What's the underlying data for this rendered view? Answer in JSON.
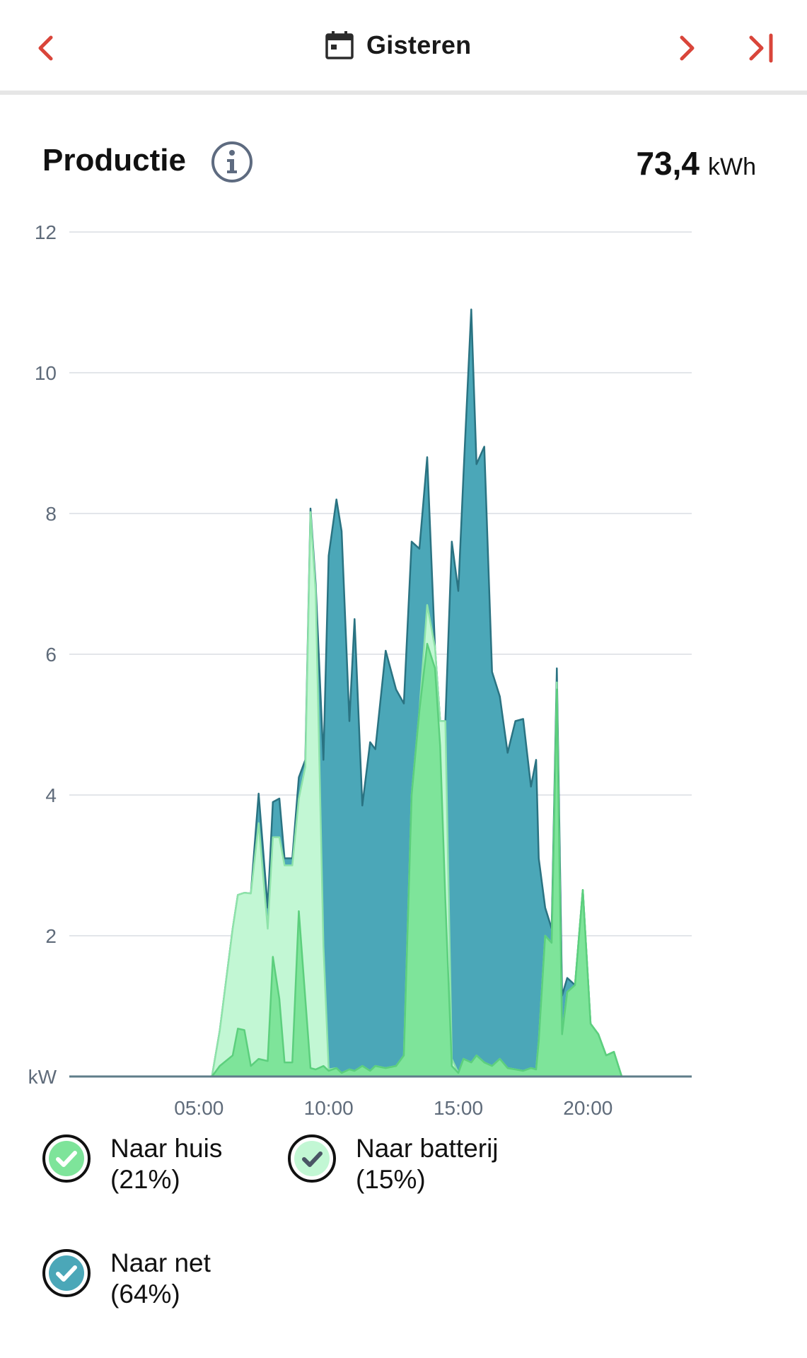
{
  "header": {
    "date_label": "Gisteren",
    "prev_icon": "chevron-left-icon",
    "next_icon": "chevron-right-icon",
    "last_icon": "skip-to-end-icon",
    "calendar_icon": "calendar-icon",
    "accent_color": "#d9453a"
  },
  "section": {
    "title": "Productie",
    "info_icon": "info-icon",
    "total_value": "73,4",
    "total_unit": "kWh"
  },
  "legend": [
    {
      "label": "Naar huis",
      "percent": "(21%)",
      "color": "#7ee49a"
    },
    {
      "label": "Naar batterij",
      "percent": "(15%)",
      "color": "#c2f7d4"
    },
    {
      "label": "Naar net",
      "percent": "(64%)",
      "color": "#4ba7b8"
    }
  ],
  "chart_data": {
    "type": "area",
    "stacked": true,
    "unit_label": "kW",
    "x_unit": "hour",
    "xlim": [
      0,
      24
    ],
    "ylim": [
      0,
      12
    ],
    "x_ticks": [
      5,
      10,
      15,
      20
    ],
    "x_tick_labels": [
      "05:00",
      "10:00",
      "15:00",
      "20:00"
    ],
    "y_ticks": [
      2,
      4,
      6,
      8,
      10,
      12
    ],
    "y_tick_labels": [
      "2",
      "4",
      "6",
      "8",
      "10",
      "12"
    ],
    "grid": true,
    "series": [
      {
        "name": "Naar huis",
        "color": "#7ee49a",
        "line_color": "#5ccf7d",
        "points": [
          [
            0,
            0
          ],
          [
            5.5,
            0
          ],
          [
            5.8,
            0.15
          ],
          [
            6.3,
            0.3
          ],
          [
            6.5,
            0.68
          ],
          [
            6.75,
            0.66
          ],
          [
            7.0,
            0.15
          ],
          [
            7.3,
            0.25
          ],
          [
            7.65,
            0.22
          ],
          [
            7.85,
            1.7
          ],
          [
            8.1,
            1.1
          ],
          [
            8.3,
            0.2
          ],
          [
            8.6,
            0.2
          ],
          [
            8.85,
            2.35
          ],
          [
            9.1,
            1.1
          ],
          [
            9.3,
            0.12
          ],
          [
            9.5,
            0.1
          ],
          [
            9.8,
            0.15
          ],
          [
            10.0,
            0.08
          ],
          [
            10.3,
            0.12
          ],
          [
            10.5,
            0.05
          ],
          [
            10.8,
            0.1
          ],
          [
            11.0,
            0.08
          ],
          [
            11.3,
            0.15
          ],
          [
            11.6,
            0.08
          ],
          [
            11.8,
            0.15
          ],
          [
            12.2,
            0.12
          ],
          [
            12.6,
            0.15
          ],
          [
            12.9,
            0.3
          ],
          [
            13.2,
            4.0
          ],
          [
            13.5,
            5.2
          ],
          [
            13.8,
            6.15
          ],
          [
            14.1,
            5.8
          ],
          [
            14.3,
            4.7
          ],
          [
            14.5,
            2.5
          ],
          [
            14.75,
            0.15
          ],
          [
            15.0,
            0.05
          ],
          [
            15.2,
            0.25
          ],
          [
            15.5,
            0.2
          ],
          [
            15.7,
            0.3
          ],
          [
            16.0,
            0.2
          ],
          [
            16.3,
            0.15
          ],
          [
            16.6,
            0.25
          ],
          [
            16.9,
            0.12
          ],
          [
            17.2,
            0.1
          ],
          [
            17.5,
            0.08
          ],
          [
            17.8,
            0.12
          ],
          [
            18.0,
            0.1
          ],
          [
            18.1,
            0.5
          ],
          [
            18.35,
            2.0
          ],
          [
            18.6,
            1.9
          ],
          [
            18.8,
            5.5
          ],
          [
            19.0,
            0.6
          ],
          [
            19.2,
            1.2
          ],
          [
            19.5,
            1.3
          ],
          [
            19.8,
            2.65
          ],
          [
            20.1,
            0.75
          ],
          [
            20.4,
            0.6
          ],
          [
            20.7,
            0.3
          ],
          [
            21.0,
            0.35
          ],
          [
            21.3,
            0
          ],
          [
            24,
            0
          ]
        ]
      },
      {
        "name": "Naar batterij",
        "color": "#c2f7d4",
        "line_color": "#8ee3a9",
        "points": [
          [
            0,
            0
          ],
          [
            5.5,
            0
          ],
          [
            5.8,
            0.5
          ],
          [
            6.3,
            1.8
          ],
          [
            6.5,
            1.9
          ],
          [
            6.75,
            1.95
          ],
          [
            7.0,
            2.45
          ],
          [
            7.3,
            3.35
          ],
          [
            7.65,
            1.88
          ],
          [
            7.85,
            1.7
          ],
          [
            8.1,
            2.3
          ],
          [
            8.3,
            2.8
          ],
          [
            8.6,
            2.8
          ],
          [
            8.85,
            1.6
          ],
          [
            9.1,
            3.3
          ],
          [
            9.3,
            7.9
          ],
          [
            9.5,
            6.8
          ],
          [
            9.8,
            1.7
          ],
          [
            10.0,
            0.02
          ],
          [
            10.3,
            0
          ],
          [
            10.5,
            0
          ],
          [
            10.8,
            0
          ],
          [
            11.0,
            0
          ],
          [
            11.3,
            0
          ],
          [
            11.6,
            0
          ],
          [
            11.8,
            0
          ],
          [
            12.2,
            0
          ],
          [
            12.6,
            0
          ],
          [
            12.9,
            0
          ],
          [
            13.2,
            0
          ],
          [
            13.5,
            0
          ],
          [
            13.8,
            0.55
          ],
          [
            14.1,
            0.3
          ],
          [
            14.3,
            0.35
          ],
          [
            14.5,
            2.55
          ],
          [
            14.75,
            0.1
          ],
          [
            15.0,
            0
          ],
          [
            15.2,
            0
          ],
          [
            15.5,
            0
          ],
          [
            15.7,
            0
          ],
          [
            16.0,
            0
          ],
          [
            16.3,
            0
          ],
          [
            16.6,
            0
          ],
          [
            16.9,
            0
          ],
          [
            17.2,
            0
          ],
          [
            17.5,
            0
          ],
          [
            17.8,
            0
          ],
          [
            18.0,
            0
          ],
          [
            18.1,
            0
          ],
          [
            18.35,
            0
          ],
          [
            18.6,
            0
          ],
          [
            18.8,
            0.1
          ],
          [
            19.0,
            0
          ],
          [
            19.2,
            0
          ],
          [
            19.5,
            0
          ],
          [
            19.8,
            0
          ],
          [
            20.1,
            0
          ],
          [
            20.4,
            0
          ],
          [
            20.7,
            0
          ],
          [
            21.0,
            0
          ],
          [
            21.3,
            0
          ],
          [
            24,
            0
          ]
        ]
      },
      {
        "name": "Naar net",
        "color": "#4ba7b8",
        "line_color": "#2a7382",
        "points": [
          [
            0,
            0
          ],
          [
            5.5,
            0
          ],
          [
            5.8,
            0
          ],
          [
            6.3,
            0
          ],
          [
            6.5,
            0
          ],
          [
            6.75,
            0
          ],
          [
            7.0,
            0
          ],
          [
            7.3,
            0.42
          ],
          [
            7.65,
            0.3
          ],
          [
            7.85,
            0.5
          ],
          [
            8.1,
            0.55
          ],
          [
            8.3,
            0.1
          ],
          [
            8.6,
            0.1
          ],
          [
            8.85,
            0.3
          ],
          [
            9.1,
            0.1
          ],
          [
            9.3,
            0.05
          ],
          [
            9.5,
            0.1
          ],
          [
            9.8,
            2.65
          ],
          [
            10.0,
            7.3
          ],
          [
            10.3,
            8.08
          ],
          [
            10.5,
            7.7
          ],
          [
            10.8,
            4.95
          ],
          [
            11.0,
            6.42
          ],
          [
            11.3,
            3.7
          ],
          [
            11.6,
            4.67
          ],
          [
            11.8,
            4.5
          ],
          [
            12.2,
            5.93
          ],
          [
            12.6,
            5.35
          ],
          [
            12.9,
            5.0
          ],
          [
            13.2,
            3.6
          ],
          [
            13.5,
            2.3
          ],
          [
            13.8,
            2.1
          ],
          [
            14.1,
            0.0
          ],
          [
            14.3,
            0.0
          ],
          [
            14.5,
            0.0
          ],
          [
            14.75,
            7.35
          ],
          [
            15.0,
            6.85
          ],
          [
            15.2,
            8.3
          ],
          [
            15.5,
            10.7
          ],
          [
            15.7,
            8.4
          ],
          [
            16.0,
            8.75
          ],
          [
            16.3,
            5.6
          ],
          [
            16.6,
            5.15
          ],
          [
            16.9,
            4.48
          ],
          [
            17.2,
            4.95
          ],
          [
            17.5,
            5.0
          ],
          [
            17.8,
            4.0
          ],
          [
            18.0,
            4.4
          ],
          [
            18.1,
            2.6
          ],
          [
            18.35,
            0.4
          ],
          [
            18.6,
            0.2
          ],
          [
            18.8,
            0.2
          ],
          [
            19.0,
            0.55
          ],
          [
            19.2,
            0.2
          ],
          [
            19.5,
            0.0
          ],
          [
            19.8,
            0
          ],
          [
            20.1,
            0
          ],
          [
            20.4,
            0
          ],
          [
            20.7,
            0
          ],
          [
            21.0,
            0
          ],
          [
            21.3,
            0
          ],
          [
            24,
            0
          ]
        ]
      }
    ]
  }
}
